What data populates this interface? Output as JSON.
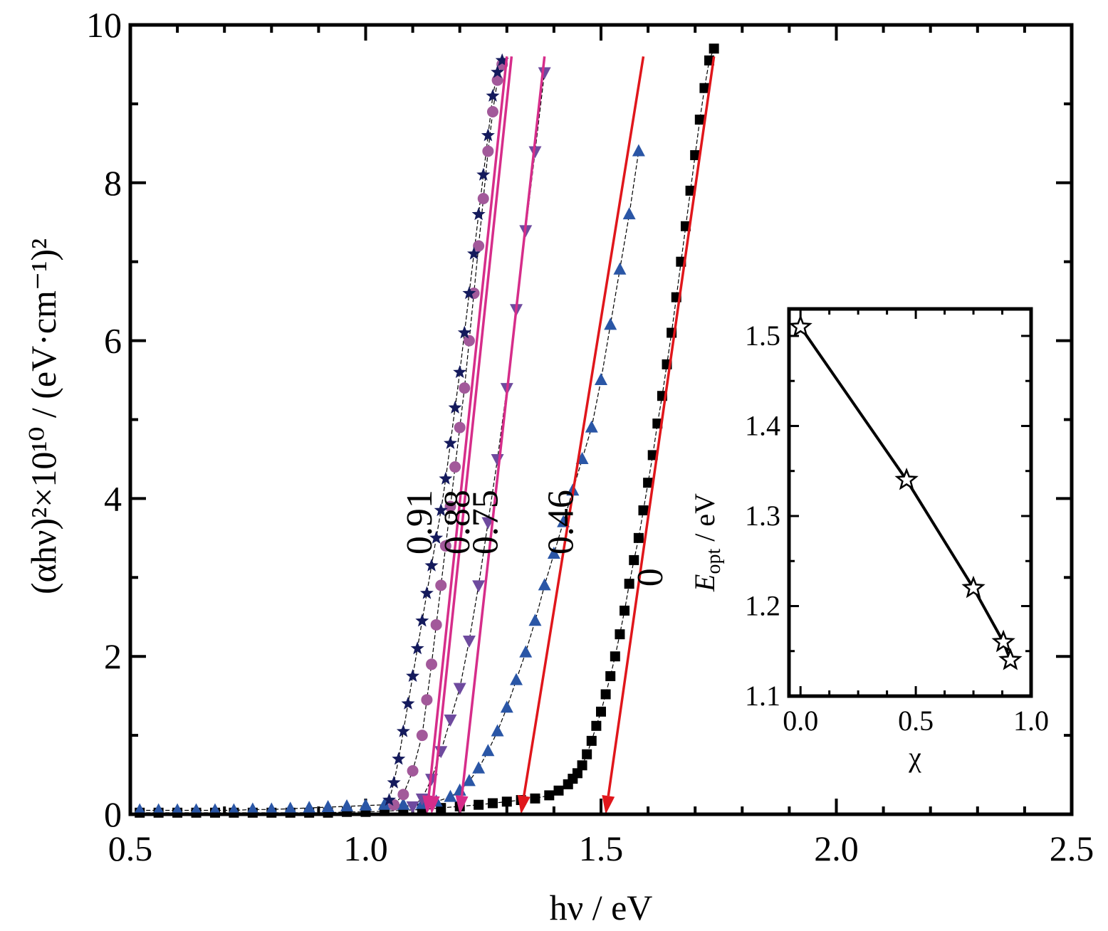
{
  "chart_data": [
    {
      "type": "scatter",
      "xlabel": "hν / eV",
      "ylabel": "(αhν)²×10¹⁰ / (eV·cm⁻¹)²",
      "xlim": [
        0.5,
        2.5
      ],
      "ylim": [
        0,
        10
      ],
      "xticks": [
        0.5,
        1.0,
        1.5,
        2.0,
        2.5
      ],
      "xtick_labels": [
        "0.5",
        "1.0",
        "1.5",
        "2.0",
        "2.5"
      ],
      "yticks": [
        0,
        2,
        4,
        6,
        8,
        10
      ],
      "ytick_labels": [
        "0",
        "2",
        "4",
        "6",
        "8",
        "10"
      ],
      "grid": false,
      "series": [
        {
          "name": "0",
          "marker": "square",
          "color": "#000000",
          "fit_color": "#e0161b",
          "x": [
            0.52,
            0.56,
            0.6,
            0.64,
            0.68,
            0.72,
            0.76,
            0.8,
            0.84,
            0.88,
            0.92,
            0.96,
            1.0,
            1.04,
            1.08,
            1.12,
            1.16,
            1.2,
            1.24,
            1.27,
            1.3,
            1.33,
            1.36,
            1.39,
            1.41,
            1.43,
            1.44,
            1.45,
            1.46,
            1.47,
            1.48,
            1.49,
            1.5,
            1.51,
            1.52,
            1.53,
            1.54,
            1.55,
            1.56,
            1.57,
            1.58,
            1.59,
            1.6,
            1.61,
            1.62,
            1.63,
            1.64,
            1.65,
            1.66,
            1.67,
            1.68,
            1.69,
            1.7,
            1.71,
            1.72,
            1.73,
            1.74
          ],
          "y": [
            0.02,
            0.02,
            0.02,
            0.02,
            0.02,
            0.02,
            0.02,
            0.02,
            0.02,
            0.02,
            0.02,
            0.03,
            0.03,
            0.04,
            0.05,
            0.06,
            0.08,
            0.1,
            0.12,
            0.14,
            0.16,
            0.18,
            0.2,
            0.24,
            0.3,
            0.38,
            0.45,
            0.52,
            0.62,
            0.76,
            0.93,
            1.12,
            1.3,
            1.52,
            1.75,
            2.0,
            2.28,
            2.58,
            2.92,
            3.22,
            3.5,
            3.85,
            4.2,
            4.55,
            4.95,
            5.3,
            5.7,
            6.1,
            6.55,
            7.0,
            7.45,
            7.9,
            8.35,
            8.8,
            9.2,
            9.55,
            9.7
          ]
        },
        {
          "name": "0.46",
          "marker": "triangle-up",
          "color": "#2a56a6",
          "fit_color": "#e0161b",
          "x": [
            0.52,
            0.56,
            0.6,
            0.64,
            0.68,
            0.72,
            0.76,
            0.8,
            0.84,
            0.88,
            0.92,
            0.96,
            1.0,
            1.04,
            1.08,
            1.12,
            1.15,
            1.18,
            1.2,
            1.22,
            1.24,
            1.26,
            1.28,
            1.3,
            1.32,
            1.34,
            1.36,
            1.38,
            1.4,
            1.42,
            1.44,
            1.46,
            1.48,
            1.5,
            1.52,
            1.54,
            1.56,
            1.58
          ],
          "y": [
            0.05,
            0.05,
            0.05,
            0.05,
            0.05,
            0.05,
            0.06,
            0.06,
            0.07,
            0.08,
            0.09,
            0.1,
            0.11,
            0.12,
            0.12,
            0.13,
            0.16,
            0.22,
            0.3,
            0.42,
            0.58,
            0.8,
            1.05,
            1.35,
            1.7,
            2.05,
            2.45,
            2.9,
            3.3,
            3.7,
            4.1,
            4.5,
            4.9,
            5.5,
            6.2,
            6.9,
            7.6,
            8.4
          ]
        },
        {
          "name": "0.75",
          "marker": "triangle-down",
          "color": "#6e4a9e",
          "fit_color": "#d62d8a",
          "x": [
            1.1,
            1.12,
            1.14,
            1.16,
            1.18,
            1.2,
            1.22,
            1.24,
            1.26,
            1.28,
            1.3,
            1.32,
            1.34,
            1.36,
            1.38
          ],
          "y": [
            0.1,
            0.2,
            0.45,
            0.8,
            1.2,
            1.6,
            2.2,
            2.9,
            3.7,
            4.5,
            5.4,
            6.4,
            7.4,
            8.4,
            9.4
          ]
        },
        {
          "name": "0.88",
          "marker": "circle",
          "color": "#a2599a",
          "fit_color": "#d62d8a",
          "x": [
            1.06,
            1.08,
            1.1,
            1.12,
            1.13,
            1.14,
            1.15,
            1.16,
            1.17,
            1.18,
            1.19,
            1.2,
            1.21,
            1.22,
            1.23,
            1.24,
            1.25,
            1.26,
            1.27,
            1.28,
            1.29
          ],
          "y": [
            0.12,
            0.25,
            0.55,
            1.0,
            1.45,
            1.9,
            2.4,
            2.9,
            3.4,
            3.9,
            4.4,
            4.9,
            5.4,
            6.0,
            6.6,
            7.2,
            7.8,
            8.4,
            8.9,
            9.3,
            9.5
          ]
        },
        {
          "name": "0.91",
          "marker": "star",
          "color": "#141a5c",
          "fit_color": "#d62d8a",
          "x": [
            1.05,
            1.06,
            1.07,
            1.08,
            1.09,
            1.1,
            1.11,
            1.12,
            1.13,
            1.14,
            1.15,
            1.16,
            1.17,
            1.18,
            1.19,
            1.2,
            1.21,
            1.22,
            1.23,
            1.24,
            1.25,
            1.26,
            1.27,
            1.28,
            1.29
          ],
          "y": [
            0.18,
            0.4,
            0.7,
            1.05,
            1.4,
            1.75,
            2.1,
            2.45,
            2.8,
            3.15,
            3.5,
            3.85,
            4.25,
            4.7,
            5.15,
            5.6,
            6.1,
            6.6,
            7.1,
            7.6,
            8.1,
            8.6,
            9.1,
            9.4,
            9.55
          ]
        }
      ],
      "fits": [
        {
          "series": "0.91",
          "x0": 1.13,
          "y0": 0,
          "x1": 1.3,
          "y1": 9.6
        },
        {
          "series": "0.88",
          "x0": 1.14,
          "y0": 0,
          "x1": 1.31,
          "y1": 9.6
        },
        {
          "series": "0.75",
          "x0": 1.2,
          "y0": 0,
          "x1": 1.38,
          "y1": 9.6
        },
        {
          "series": "0.46",
          "x0": 1.33,
          "y0": 0,
          "x1": 1.59,
          "y1": 9.6
        },
        {
          "series": "0",
          "x0": 1.51,
          "y0": 0,
          "x1": 1.74,
          "y1": 9.6
        }
      ],
      "annotations": [
        {
          "text": "0.91",
          "x": 1.14,
          "y": 3.7
        },
        {
          "text": "0.88",
          "x": 1.22,
          "y": 3.7
        },
        {
          "text": "0.75",
          "x": 1.28,
          "y": 3.7
        },
        {
          "text": "0.46",
          "x": 1.44,
          "y": 3.7
        },
        {
          "text": "0",
          "x": 1.63,
          "y": 3.0
        }
      ]
    },
    {
      "type": "line",
      "xlabel": "χ",
      "ylabel": "E_opt / eV",
      "ylabel_main": "E",
      "ylabel_sub": "opt",
      "ylabel_rest": " / eV",
      "xlim": [
        -0.05,
        1.0
      ],
      "ylim": [
        1.1,
        1.53
      ],
      "xticks": [
        0.0,
        0.5,
        1.0
      ],
      "xtick_labels": [
        "0.0",
        "0.5",
        "1.0"
      ],
      "yticks": [
        1.1,
        1.2,
        1.3,
        1.4,
        1.5
      ],
      "ytick_labels": [
        "1.1",
        "1.2",
        "1.3",
        "1.4",
        "1.5"
      ],
      "grid": false,
      "marker": "open-star",
      "x": [
        0,
        0.46,
        0.75,
        0.88,
        0.91
      ],
      "y": [
        1.51,
        1.34,
        1.22,
        1.16,
        1.14
      ]
    }
  ]
}
